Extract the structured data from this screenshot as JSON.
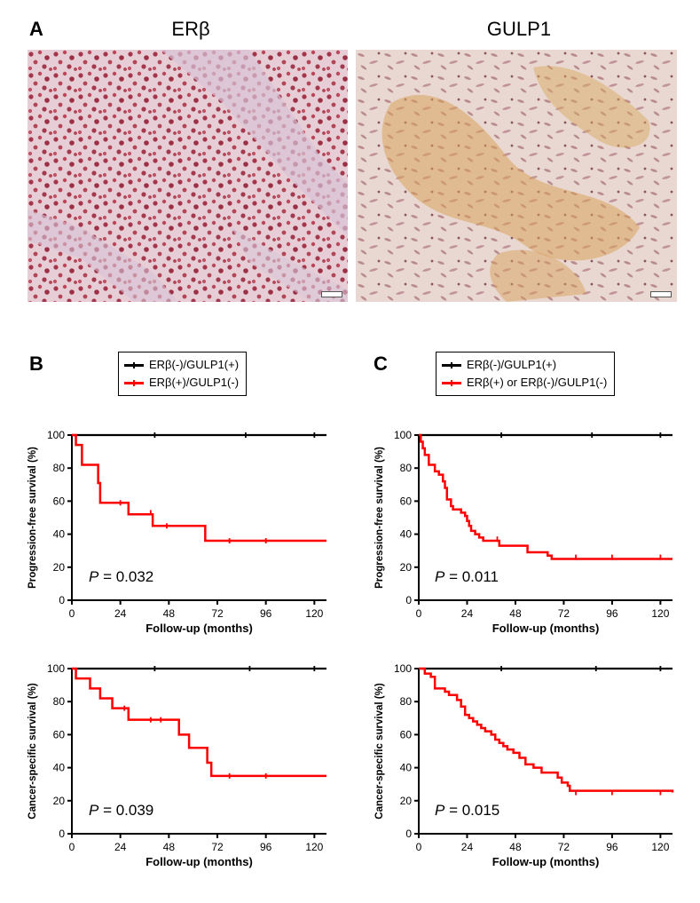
{
  "figure": {
    "panel_a": {
      "letter": "A",
      "images": [
        {
          "title": "ERβ",
          "description": "immunohistochemistry, nuclear stain",
          "colors": {
            "base": "#e7cfd9",
            "accent": "#a8324a"
          }
        },
        {
          "title": "GULP1",
          "description": "immunohistochemistry, cytoplasmic stain",
          "colors": {
            "base": "#ead9d0",
            "accent": "#c98a3a"
          }
        }
      ]
    },
    "panel_b": {
      "letter": "B",
      "legend": [
        {
          "label": "ERβ(-)/GULP1(+)",
          "color": "#000000"
        },
        {
          "label": "ERβ(+)/GULP1(-)",
          "color": "#ff0000"
        }
      ]
    },
    "panel_c": {
      "letter": "C",
      "legend": [
        {
          "label": "ERβ(-)/GULP1(+)",
          "color": "#000000"
        },
        {
          "label": "ERβ(+) or ERβ(-)/GULP1(-)",
          "color": "#ff0000"
        }
      ]
    }
  },
  "chart_data": [
    {
      "type": "line",
      "panel": "B",
      "title": "",
      "xlabel": "Follow-up (months)",
      "ylabel": "Progression-free survival (%)",
      "xlim": [
        0,
        126
      ],
      "ylim": [
        0,
        100
      ],
      "xticks": [
        "0",
        "24",
        "48",
        "72",
        "96",
        "120"
      ],
      "yticks": [
        "0",
        "20",
        "40",
        "60",
        "80",
        "100"
      ],
      "pvalue_prefix": "P",
      "pvalue_text": " = 0.032",
      "series": [
        {
          "name": "ERβ(-)/GULP1(+)",
          "color": "#000000",
          "steps": [
            [
              0,
              100
            ],
            [
              126,
              100
            ]
          ],
          "censors": [
            [
              41,
              100
            ],
            [
              86,
              100
            ],
            [
              120,
              100
            ]
          ]
        },
        {
          "name": "ERβ(+)/GULP1(-)",
          "color": "#ff0000",
          "steps": [
            [
              0,
              100
            ],
            [
              2,
              94
            ],
            [
              5,
              82
            ],
            [
              13,
              71
            ],
            [
              14,
              59
            ],
            [
              28,
              52
            ],
            [
              40,
              45
            ],
            [
              66,
              36
            ],
            [
              126,
              36
            ]
          ],
          "censors": [
            [
              24,
              59
            ],
            [
              39,
              53
            ],
            [
              47,
              45
            ],
            [
              78,
              36
            ],
            [
              96,
              36
            ]
          ]
        }
      ]
    },
    {
      "type": "line",
      "panel": "C",
      "title": "",
      "xlabel": "Follow-up (months)",
      "ylabel": "Progression-free survival (%)",
      "xlim": [
        0,
        126
      ],
      "ylim": [
        0,
        100
      ],
      "xticks": [
        "0",
        "24",
        "48",
        "72",
        "96",
        "120"
      ],
      "yticks": [
        "0",
        "20",
        "40",
        "60",
        "80",
        "100"
      ],
      "pvalue_prefix": "P",
      "pvalue_text": " = 0.011",
      "series": [
        {
          "name": "ERβ(-)/GULP1(+)",
          "color": "#000000",
          "steps": [
            [
              0,
              100
            ],
            [
              126,
              100
            ]
          ],
          "censors": [
            [
              41,
              100
            ],
            [
              86,
              100
            ],
            [
              120,
              100
            ]
          ]
        },
        {
          "name": "ERβ(+) or ERβ(-)/GULP1(-)",
          "color": "#ff0000",
          "steps": [
            [
              0,
              100
            ],
            [
              1,
              96
            ],
            [
              2,
              92
            ],
            [
              3,
              88
            ],
            [
              5,
              82
            ],
            [
              8,
              78
            ],
            [
              10,
              76
            ],
            [
              12,
              72
            ],
            [
              13,
              68
            ],
            [
              14,
              61
            ],
            [
              16,
              57
            ],
            [
              17,
              55
            ],
            [
              21,
              53
            ],
            [
              23,
              51
            ],
            [
              24,
              48
            ],
            [
              25,
              45
            ],
            [
              26,
              42
            ],
            [
              28,
              40
            ],
            [
              30,
              38
            ],
            [
              32,
              36
            ],
            [
              40,
              33
            ],
            [
              54,
              29
            ],
            [
              64,
              27
            ],
            [
              66,
              25
            ],
            [
              126,
              25
            ]
          ],
          "censors": [
            [
              39,
              37
            ],
            [
              78,
              26
            ],
            [
              96,
              26
            ],
            [
              120,
              26
            ]
          ]
        }
      ]
    },
    {
      "type": "line",
      "panel": "B",
      "title": "",
      "xlabel": "Follow-up (months)",
      "ylabel": "Cancer-specific survival (%)",
      "xlim": [
        0,
        126
      ],
      "ylim": [
        0,
        100
      ],
      "xticks": [
        "0",
        "24",
        "48",
        "72",
        "96",
        "120"
      ],
      "yticks": [
        "0",
        "20",
        "40",
        "60",
        "80",
        "100"
      ],
      "pvalue_prefix": "P",
      "pvalue_text": " = 0.039",
      "series": [
        {
          "name": "ERβ(-)/GULP1(+)",
          "color": "#000000",
          "steps": [
            [
              0,
              100
            ],
            [
              126,
              100
            ]
          ],
          "censors": [
            [
              41,
              100
            ],
            [
              88,
              100
            ],
            [
              120,
              100
            ]
          ]
        },
        {
          "name": "ERβ(+)/GULP1(-)",
          "color": "#ff0000",
          "steps": [
            [
              0,
              100
            ],
            [
              2,
              94
            ],
            [
              9,
              88
            ],
            [
              14,
              82
            ],
            [
              20,
              76
            ],
            [
              28,
              69
            ],
            [
              53,
              60
            ],
            [
              58,
              52
            ],
            [
              67,
              43
            ],
            [
              69,
              35
            ],
            [
              126,
              35
            ]
          ],
          "censors": [
            [
              26,
              76
            ],
            [
              39,
              69
            ],
            [
              44,
              69
            ],
            [
              78,
              35
            ],
            [
              96,
              35
            ]
          ]
        }
      ]
    },
    {
      "type": "line",
      "panel": "C",
      "title": "",
      "xlabel": "Follow-up (months)",
      "ylabel": "Cancer-specific survival (%)",
      "xlim": [
        0,
        126
      ],
      "ylim": [
        0,
        100
      ],
      "xticks": [
        "0",
        "24",
        "48",
        "72",
        "96",
        "120"
      ],
      "yticks": [
        "0",
        "20",
        "40",
        "60",
        "80",
        "100"
      ],
      "pvalue_prefix": "P",
      "pvalue_text": " = 0.015",
      "series": [
        {
          "name": "ERβ(-)/GULP1(+)",
          "color": "#000000",
          "steps": [
            [
              0,
              100
            ],
            [
              126,
              100
            ]
          ],
          "censors": [
            [
              41,
              100
            ],
            [
              88,
              100
            ],
            [
              120,
              100
            ]
          ]
        },
        {
          "name": "ERβ(+) or ERβ(-)/GULP1(-)",
          "color": "#ff0000",
          "steps": [
            [
              0,
              100
            ],
            [
              3,
              97
            ],
            [
              6,
              95
            ],
            [
              8,
              88
            ],
            [
              13,
              86
            ],
            [
              15,
              84
            ],
            [
              19,
              81
            ],
            [
              21,
              77
            ],
            [
              23,
              72
            ],
            [
              25,
              70
            ],
            [
              27,
              68
            ],
            [
              29,
              66
            ],
            [
              31,
              64
            ],
            [
              33,
              62
            ],
            [
              36,
              60
            ],
            [
              38,
              57
            ],
            [
              40,
              55
            ],
            [
              42,
              53
            ],
            [
              44,
              51
            ],
            [
              47,
              49
            ],
            [
              50,
              46
            ],
            [
              53,
              42
            ],
            [
              57,
              40
            ],
            [
              61,
              37
            ],
            [
              69,
              34
            ],
            [
              71,
              31
            ],
            [
              74,
              29
            ],
            [
              75,
              26
            ],
            [
              126,
              25
            ]
          ],
          "censors": [
            [
              44,
              52
            ],
            [
              78,
              25
            ],
            [
              96,
              25
            ],
            [
              120,
              25
            ]
          ]
        }
      ]
    }
  ]
}
